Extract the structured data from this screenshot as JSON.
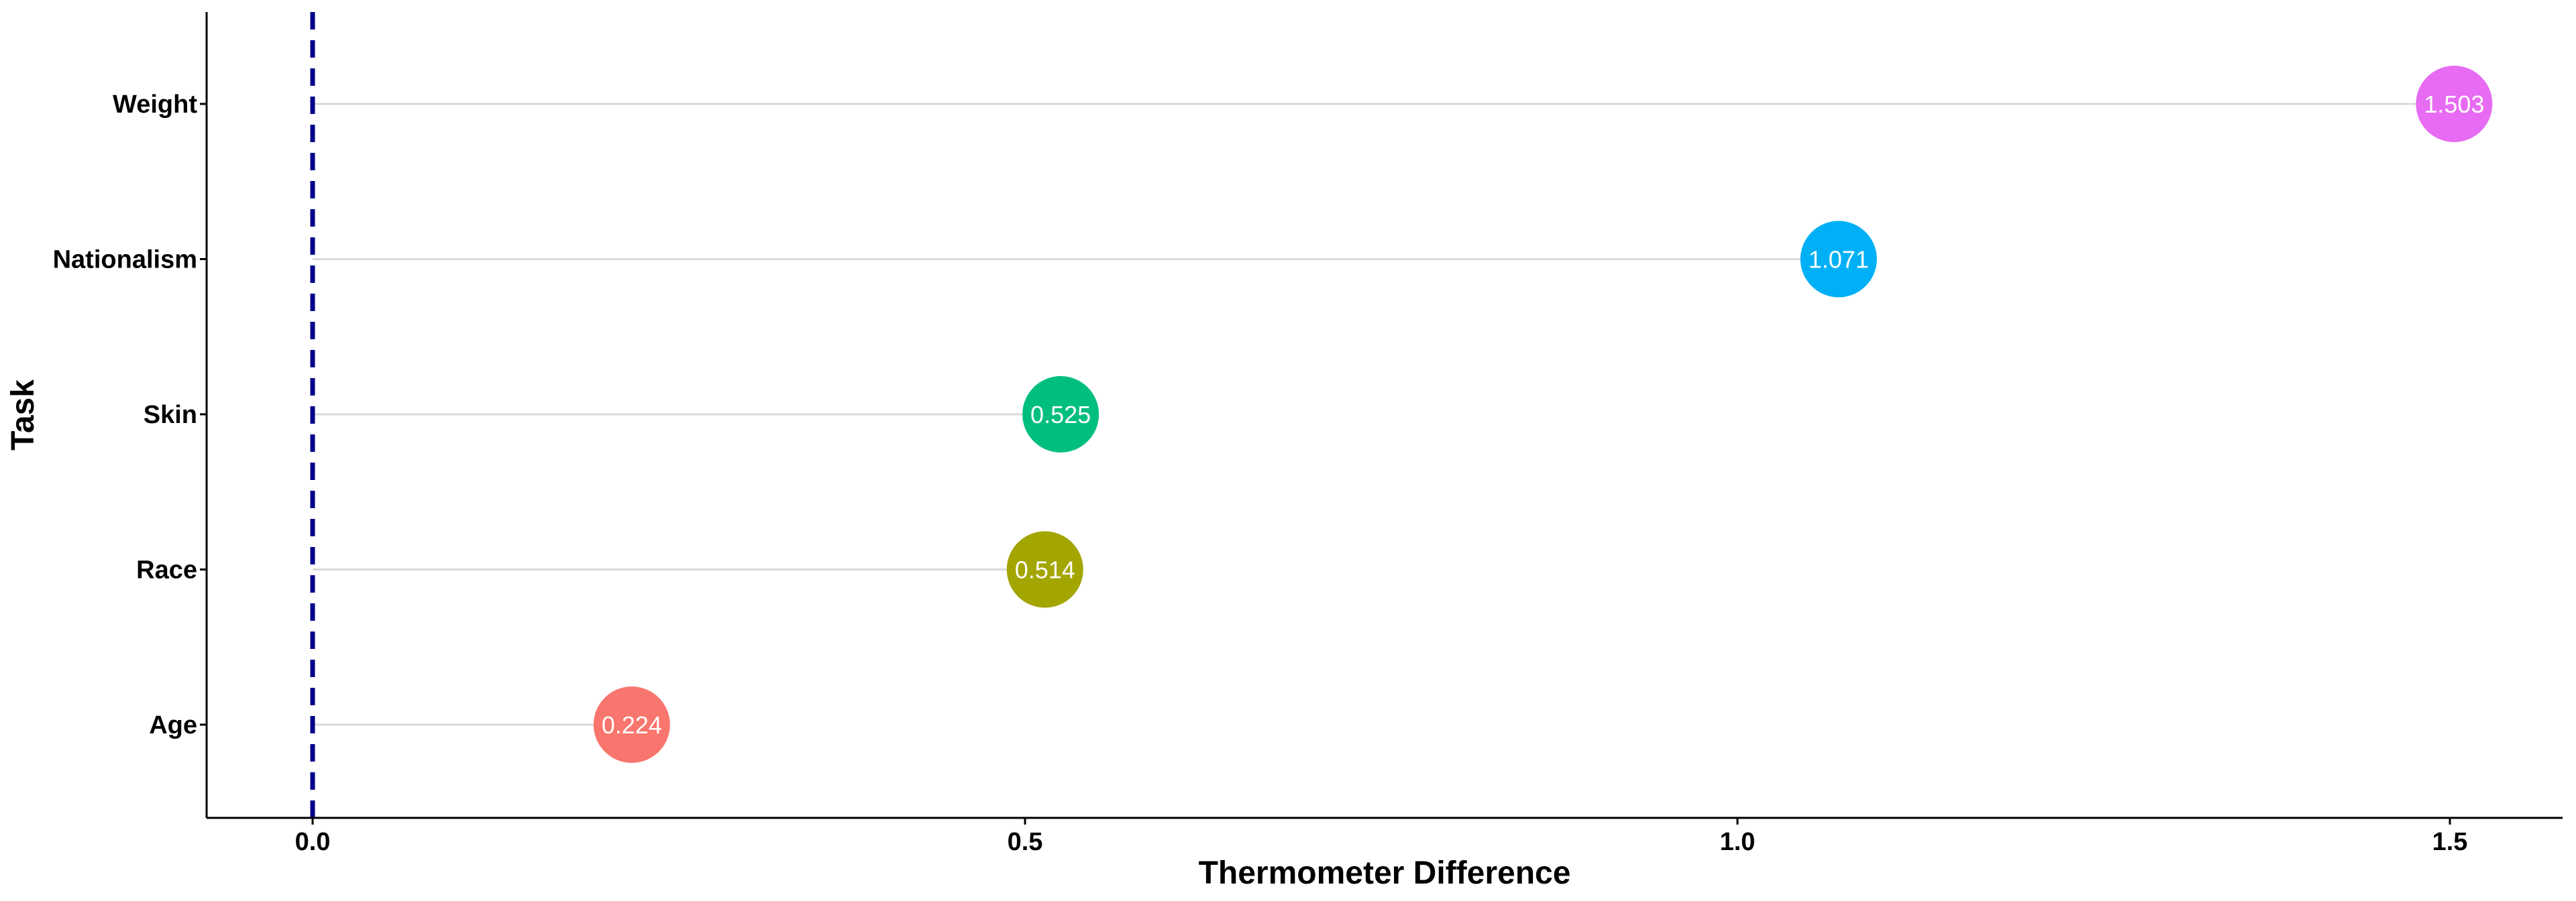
{
  "chart_data": {
    "type": "lollipop",
    "xlabel": "Thermometer Difference",
    "ylabel": "Task",
    "xlim": [
      -0.15,
      1.58
    ],
    "xticks": [
      0.0,
      0.5,
      1.0,
      1.5
    ],
    "xtick_labels": [
      "0.0",
      "0.5",
      "1.0",
      "1.5"
    ],
    "reference_line": {
      "x": 0.0,
      "style": "dashed",
      "color": "#00008B"
    },
    "grid": false,
    "legend": "none",
    "categories": [
      "Age",
      "Race",
      "Skin",
      "Nationalism",
      "Weight"
    ],
    "values": [
      0.224,
      0.514,
      0.525,
      1.071,
      1.503
    ],
    "labels": [
      "0.224",
      "0.514",
      "0.525",
      "1.071",
      "1.503"
    ],
    "colors": [
      "#F8766D",
      "#A3A500",
      "#00BF7D",
      "#00B0F6",
      "#E76BF3"
    ],
    "stem_color": "#D9D9D9"
  }
}
